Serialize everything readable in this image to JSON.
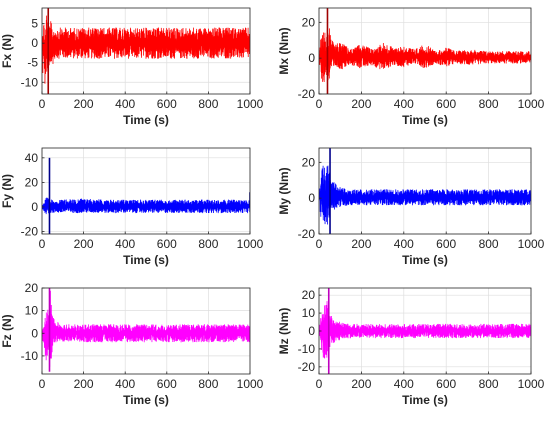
{
  "chart_data": [
    {
      "type": "line",
      "xlabel": "Time (s)",
      "ylabel": "Fx (N)",
      "xlim": [
        0,
        1000
      ],
      "ylim": [
        -13,
        9
      ],
      "xticks": [
        0,
        200,
        400,
        600,
        800,
        1000
      ],
      "yticks": [
        -10,
        -5,
        0,
        5
      ],
      "grid": true,
      "color": "#ff0000",
      "accent_color": "#a00000",
      "series": [
        {
          "envelope": {
            "time": [
              0,
              5,
              10,
              15,
              20,
              30,
              40,
              50,
              60,
              80,
              100,
              150,
              200,
              300,
              400,
              500,
              600,
              700,
              800,
              900,
              1000
            ],
            "upper": [
              2,
              8,
              5,
              4,
              9,
              4,
              6,
              4,
              4,
              4,
              4,
              4,
              4,
              4,
              4,
              4,
              4,
              4,
              4,
              4,
              4
            ],
            "lower": [
              -2,
              -10,
              -6,
              -12,
              -7,
              -12,
              -6,
              -6,
              -4,
              -4,
              -4,
              -4,
              -4,
              -4,
              -4,
              -4,
              -4,
              -4,
              -4,
              -4,
              -4
            ]
          },
          "spikes": [
            {
              "time": 30,
              "min": -13,
              "max": 9
            }
          ]
        }
      ]
    },
    {
      "type": "line",
      "xlabel": "Time (s)",
      "ylabel": "Mx (Nm)",
      "xlim": [
        0,
        1000
      ],
      "ylim": [
        -20,
        28
      ],
      "xticks": [
        0,
        200,
        400,
        600,
        800,
        1000
      ],
      "yticks": [
        -20,
        0,
        20
      ],
      "grid": true,
      "color": "#ff0000",
      "accent_color": "#a00000",
      "series": [
        {
          "envelope": {
            "time": [
              0,
              10,
              20,
              30,
              40,
              50,
              60,
              80,
              100,
              150,
              200,
              250,
              300,
              350,
              400,
              450,
              500,
              550,
              600,
              650,
              700,
              800,
              900,
              1000
            ],
            "upper": [
              2,
              14,
              18,
              14,
              22,
              16,
              10,
              8,
              9,
              5,
              8,
              5,
              9,
              6,
              7,
              5,
              8,
              4,
              6,
              4,
              5,
              4,
              4,
              4
            ],
            "lower": [
              -2,
              -12,
              -14,
              -16,
              -20,
              -10,
              -6,
              -5,
              -7,
              -4,
              -6,
              -4,
              -7,
              -4,
              -5,
              -3,
              -6,
              -3,
              -5,
              -3,
              -4,
              -3,
              -3,
              -3
            ]
          },
          "spikes": [
            {
              "time": 40,
              "min": -20,
              "max": 28
            }
          ]
        }
      ]
    },
    {
      "type": "line",
      "xlabel": "Time (s)",
      "ylabel": "Fy (N)",
      "xlim": [
        0,
        1000
      ],
      "ylim": [
        -22,
        48
      ],
      "xticks": [
        0,
        200,
        400,
        600,
        800,
        1000
      ],
      "yticks": [
        -20,
        0,
        20,
        40
      ],
      "grid": true,
      "color": "#0000ff",
      "accent_color": "#00008b",
      "series": [
        {
          "envelope": {
            "time": [
              0,
              10,
              20,
              40,
              60,
              100,
              200,
              300,
              400,
              500,
              600,
              700,
              800,
              900,
              1000
            ],
            "upper": [
              2,
              5,
              8,
              6,
              6,
              6,
              7,
              6,
              6,
              6,
              6,
              6,
              6,
              6,
              6
            ],
            "lower": [
              -2,
              -4,
              -6,
              -5,
              -5,
              -5,
              -5,
              -5,
              -5,
              -5,
              -5,
              -5,
              -5,
              -5,
              -5
            ]
          },
          "spikes": [
            {
              "time": 36,
              "min": -22,
              "max": 40
            },
            {
              "time": 1000,
              "min": 0,
              "max": 12
            }
          ]
        }
      ]
    },
    {
      "type": "line",
      "xlabel": "Time (s)",
      "ylabel": "My (Nm)",
      "xlim": [
        0,
        1000
      ],
      "ylim": [
        -20,
        28
      ],
      "xticks": [
        0,
        200,
        400,
        600,
        800,
        1000
      ],
      "yticks": [
        -20,
        0,
        20
      ],
      "grid": true,
      "color": "#0000ff",
      "accent_color": "#00008b",
      "series": [
        {
          "envelope": {
            "time": [
              0,
              10,
              20,
              30,
              40,
              50,
              60,
              80,
              100,
              150,
              200,
              300,
              400,
              500,
              600,
              700,
              800,
              900,
              1000
            ],
            "upper": [
              2,
              15,
              20,
              17,
              19,
              14,
              10,
              8,
              6,
              5,
              5,
              5,
              5,
              5,
              5,
              5,
              5,
              5,
              5
            ],
            "lower": [
              -2,
              -12,
              -16,
              -15,
              -17,
              -10,
              -7,
              -6,
              -5,
              -4,
              -4,
              -4,
              -4,
              -4,
              -4,
              -4,
              -4,
              -4,
              -4
            ]
          },
          "spikes": [
            {
              "time": 52,
              "min": -20,
              "max": 28
            }
          ]
        }
      ]
    },
    {
      "type": "line",
      "xlabel": "Time (s)",
      "ylabel": "Fz (N)",
      "xlim": [
        0,
        1000
      ],
      "ylim": [
        -18,
        20
      ],
      "xticks": [
        0,
        200,
        400,
        600,
        800,
        1000
      ],
      "yticks": [
        -10,
        0,
        10,
        20
      ],
      "grid": true,
      "color": "#ff00ff",
      "accent_color": "#c000c0",
      "series": [
        {
          "envelope": {
            "time": [
              0,
              10,
              20,
              30,
              40,
              50,
              60,
              80,
              100,
              200,
              300,
              400,
              500,
              600,
              700,
              800,
              900,
              1000
            ],
            "upper": [
              1,
              6,
              12,
              10,
              20,
              8,
              6,
              5,
              4,
              4,
              4,
              4,
              4,
              4,
              4,
              4,
              4,
              4
            ],
            "lower": [
              -1,
              -8,
              -12,
              -10,
              -17,
              -7,
              -5,
              -4,
              -4,
              -4,
              -4,
              -4,
              -4,
              -4,
              -4,
              -4,
              -4,
              -4
            ]
          },
          "spikes": [
            {
              "time": 36,
              "min": -17,
              "max": 20
            }
          ]
        }
      ]
    },
    {
      "type": "line",
      "xlabel": "Time (s)",
      "ylabel": "Mz (Nm)",
      "xlim": [
        0,
        1000
      ],
      "ylim": [
        -24,
        24
      ],
      "xticks": [
        0,
        200,
        400,
        600,
        800,
        1000
      ],
      "yticks": [
        -20,
        -10,
        0,
        10,
        20
      ],
      "grid": true,
      "color": "#ff00ff",
      "accent_color": "#c000c0",
      "series": [
        {
          "envelope": {
            "time": [
              0,
              10,
              20,
              30,
              40,
              50,
              60,
              80,
              100,
              150,
              200,
              300,
              400,
              500,
              600,
              700,
              800,
              900,
              1000
            ],
            "upper": [
              1,
              10,
              16,
              14,
              20,
              12,
              8,
              6,
              5,
              4,
              4,
              4,
              4,
              4,
              4,
              4,
              4,
              4,
              4
            ],
            "lower": [
              -1,
              -10,
              -16,
              -18,
              -20,
              -12,
              -8,
              -6,
              -5,
              -4,
              -4,
              -4,
              -4,
              -4,
              -4,
              -4,
              -4,
              -4,
              -4
            ]
          },
          "spikes": [
            {
              "time": 46,
              "min": -24,
              "max": 24
            }
          ]
        }
      ]
    }
  ]
}
